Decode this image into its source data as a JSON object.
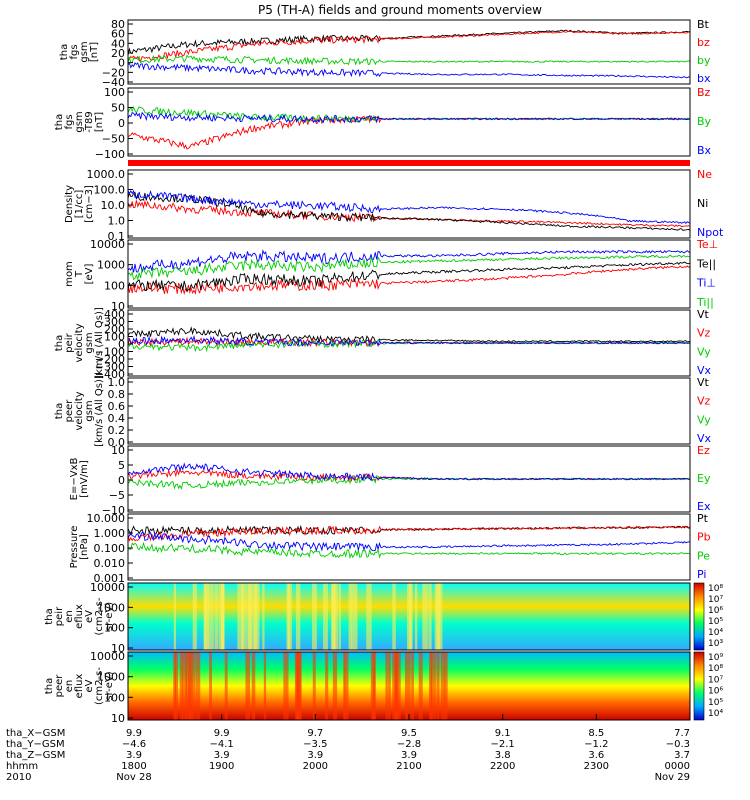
{
  "title": "P5 (TH-A) fields and ground moments overview",
  "colors": {
    "black": "#000000",
    "red": "#ff0000",
    "green": "#00cc00",
    "blue": "#0000ff"
  },
  "chart_data": [
    {
      "type": "line",
      "id": "fgs",
      "ylabel": [
        "tha",
        "fgs",
        "gsm",
        "[nT]"
      ],
      "yticks": [
        "80",
        "60",
        "40",
        "20",
        "0",
        "−20",
        "−40"
      ],
      "ylim": [
        -40,
        80
      ],
      "series": [
        {
          "name": "Bt",
          "color": "black",
          "values": [
            20,
            35,
            40,
            45,
            45,
            50,
            55,
            60,
            55,
            58
          ]
        },
        {
          "name": "bz",
          "color": "red",
          "values": [
            5,
            20,
            35,
            42,
            44,
            48,
            53,
            58,
            54,
            57
          ]
        },
        {
          "name": "by",
          "color": "green",
          "values": [
            5,
            8,
            5,
            3,
            2,
            2,
            2,
            2,
            2,
            2
          ]
        },
        {
          "name": "bx",
          "color": "blue",
          "values": [
            -5,
            -10,
            -15,
            -18,
            -20,
            -22,
            -22,
            -24,
            -25,
            -28
          ]
        }
      ]
    },
    {
      "type": "line",
      "id": "fgs-t89",
      "ylabel": [
        "tha",
        "fgs",
        "gsm",
        "-T89",
        "[nT]"
      ],
      "yticks": [
        "100",
        "50",
        "0",
        "−50",
        "−100"
      ],
      "ylim": [
        -120,
        100
      ],
      "series": [
        {
          "name": "Bz",
          "color": "red",
          "values": [
            -50,
            -90,
            -30,
            -5,
            0,
            0,
            0,
            0,
            0,
            0
          ]
        },
        {
          "name": "By",
          "color": "green",
          "values": [
            30,
            20,
            5,
            2,
            0,
            0,
            0,
            0,
            0,
            0
          ]
        },
        {
          "name": "Bx",
          "color": "blue",
          "values": [
            10,
            5,
            2,
            0,
            0,
            0,
            0,
            0,
            0,
            0
          ]
        }
      ]
    },
    {
      "type": "line",
      "id": "density",
      "log": true,
      "ylabel": [
        "Density",
        "[1/cc]",
        "[cm−3]"
      ],
      "yticks": [
        "1000.0",
        "100.0",
        "10.0",
        "1.0",
        "0.1"
      ],
      "ylim": [
        0.1,
        1000
      ],
      "series": [
        {
          "name": "Ne",
          "color": "red",
          "values": [
            10,
            5,
            3,
            2,
            1.5,
            1.2,
            1,
            0.8,
            0.6,
            0.5
          ]
        },
        {
          "name": "Ni",
          "color": "black",
          "values": [
            30,
            20,
            3,
            2,
            1.5,
            1.2,
            0.8,
            0.5,
            0.4,
            0.3
          ]
        },
        {
          "name": "Npot",
          "color": "blue",
          "values": [
            40,
            20,
            10,
            8,
            5,
            6,
            5,
            3,
            1,
            0.8
          ]
        }
      ]
    },
    {
      "type": "line",
      "id": "temp",
      "log": true,
      "ylabel": [
        "mom",
        "T",
        "[eV]"
      ],
      "yticks": [
        "10000",
        "1000",
        "100",
        "10"
      ],
      "ylim": [
        10,
        10000
      ],
      "series": [
        {
          "name": "Te⊥",
          "color": "red",
          "values": [
            80,
            70,
            100,
            100,
            120,
            150,
            200,
            300,
            500,
            700
          ]
        },
        {
          "name": "Te||",
          "color": "black",
          "values": [
            100,
            90,
            200,
            150,
            300,
            400,
            500,
            600,
            800,
            1000
          ]
        },
        {
          "name": "Ti⊥",
          "color": "blue",
          "values": [
            500,
            1000,
            2000,
            1500,
            2000,
            2000,
            2500,
            3000,
            3000,
            3000
          ]
        },
        {
          "name": "Ti||",
          "color": "green",
          "values": [
            300,
            400,
            800,
            600,
            1000,
            1200,
            1400,
            1600,
            1800,
            2000
          ]
        }
      ]
    },
    {
      "type": "line",
      "id": "peir-velocity",
      "ylabel": [
        "tha",
        "peir",
        "velocity",
        "gsm",
        "[km/s (All Qs)]"
      ],
      "yticks": [
        "400",
        "300",
        "200",
        "100",
        "0",
        "−100",
        "−200",
        "−300",
        "−400"
      ],
      "ylim": [
        -400,
        400
      ],
      "series": [
        {
          "name": "Vt",
          "color": "black",
          "values": [
            100,
            150,
            80,
            50,
            40,
            30,
            20,
            20,
            20,
            20
          ]
        },
        {
          "name": "Vz",
          "color": "red",
          "values": [
            10,
            20,
            10,
            5,
            5,
            5,
            0,
            0,
            0,
            0
          ]
        },
        {
          "name": "Vy",
          "color": "green",
          "values": [
            -30,
            -60,
            -20,
            -10,
            -5,
            0,
            0,
            0,
            0,
            0
          ]
        },
        {
          "name": "Vx",
          "color": "blue",
          "values": [
            20,
            40,
            10,
            5,
            5,
            0,
            0,
            0,
            0,
            0
          ]
        }
      ]
    },
    {
      "type": "line",
      "id": "peer-velocity",
      "ylabel": [
        "tha",
        "peer",
        "velocity",
        "gsm",
        "[km/s (All Qs)]"
      ],
      "yticks": [
        "1.0",
        "0.8",
        "0.6",
        "0.4",
        "0.2",
        "0.0"
      ],
      "ylim": [
        0,
        1
      ],
      "series": [
        {
          "name": "Vt",
          "color": "black",
          "values": []
        },
        {
          "name": "Vz",
          "color": "red",
          "values": []
        },
        {
          "name": "Vy",
          "color": "green",
          "values": []
        },
        {
          "name": "Vx",
          "color": "blue",
          "values": []
        }
      ]
    },
    {
      "type": "line",
      "id": "efield",
      "ylabel": [
        "E=−VxB",
        "[mV/m]"
      ],
      "yticks": [
        "10",
        "5",
        "0",
        "−5",
        "−10"
      ],
      "ylim": [
        -10,
        10
      ],
      "series": [
        {
          "name": "Ez",
          "color": "red",
          "values": [
            1,
            2,
            1,
            0.5,
            0.5,
            0,
            0,
            0,
            0,
            0
          ]
        },
        {
          "name": "Ey",
          "color": "green",
          "values": [
            -1,
            -2,
            -1,
            -0.5,
            0,
            0,
            0,
            0,
            0,
            0
          ]
        },
        {
          "name": "Ex",
          "color": "blue",
          "values": [
            2,
            4,
            2,
            1,
            0.5,
            0,
            0,
            0,
            0,
            0
          ]
        }
      ]
    },
    {
      "type": "line",
      "id": "pressure",
      "log": true,
      "ylabel": [
        "Pressure",
        "[nPa]"
      ],
      "yticks": [
        "10.000",
        "1.000",
        "0.100",
        "0.010",
        "0.001"
      ],
      "ylim": [
        0.001,
        10
      ],
      "series": [
        {
          "name": "Pt",
          "color": "black",
          "values": [
            1,
            1,
            1,
            1,
            1.1,
            1.2,
            1.3,
            1.4,
            1.5,
            1.6
          ]
        },
        {
          "name": "Pb",
          "color": "red",
          "values": [
            0.3,
            0.6,
            0.9,
            1,
            1.1,
            1.2,
            1.3,
            1.4,
            1.5,
            1.6
          ]
        },
        {
          "name": "Pe",
          "color": "green",
          "values": [
            0.1,
            0.08,
            0.05,
            0.04,
            0.04,
            0.04,
            0.04,
            0.04,
            0.04,
            0.04
          ]
        },
        {
          "name": "Pi",
          "color": "blue",
          "values": [
            0.5,
            0.3,
            0.15,
            0.1,
            0.1,
            0.1,
            0.12,
            0.13,
            0.15,
            0.2
          ]
        }
      ]
    },
    {
      "type": "heatmap",
      "id": "peir-eflux",
      "log": true,
      "ylabel": [
        "tha",
        "peir",
        "en",
        "eflux",
        "eV",
        "(cm2-s-",
        "sr-eV)"
      ],
      "yticks": [
        "10000",
        "1000",
        "100",
        "10"
      ],
      "ylim": [
        10,
        30000
      ],
      "colorbar": [
        "10⁸",
        "10⁷",
        "10⁶",
        "10⁵",
        "10⁴",
        "10³"
      ]
    },
    {
      "type": "heatmap",
      "id": "peer-eflux",
      "log": true,
      "ylabel": [
        "tha",
        "peer",
        "en",
        "eflux",
        "eV",
        "(cm2-s-",
        "sr-eV)"
      ],
      "yticks": [
        "10000",
        "1000",
        "100",
        "10"
      ],
      "ylim": [
        10,
        30000
      ],
      "colorbar": [
        "10⁹",
        "10⁸",
        "10⁷",
        "10⁶",
        "10⁵",
        "10⁴"
      ]
    }
  ],
  "xaxis": {
    "rows": [
      {
        "label": "tha_X−GSM",
        "values": [
          "9.9",
          "9.9",
          "9.7",
          "9.5",
          "9.1",
          "8.5",
          "7.7"
        ]
      },
      {
        "label": "tha_Y−GSM",
        "values": [
          "−4.6",
          "−4.1",
          "−3.5",
          "−2.8",
          "−2.1",
          "−1.2",
          "−0.3"
        ]
      },
      {
        "label": "tha_Z−GSM",
        "values": [
          "3.9",
          "3.9",
          "3.9",
          "3.9",
          "3.8",
          "3.6",
          "3.7"
        ]
      },
      {
        "label": "hhmm",
        "values": [
          "1800",
          "1900",
          "2000",
          "2100",
          "2200",
          "2300",
          "0000"
        ]
      },
      {
        "label": "2010",
        "values": [
          "Nov 28",
          "",
          "",
          "",
          "",
          "",
          "Nov 29"
        ]
      }
    ]
  }
}
